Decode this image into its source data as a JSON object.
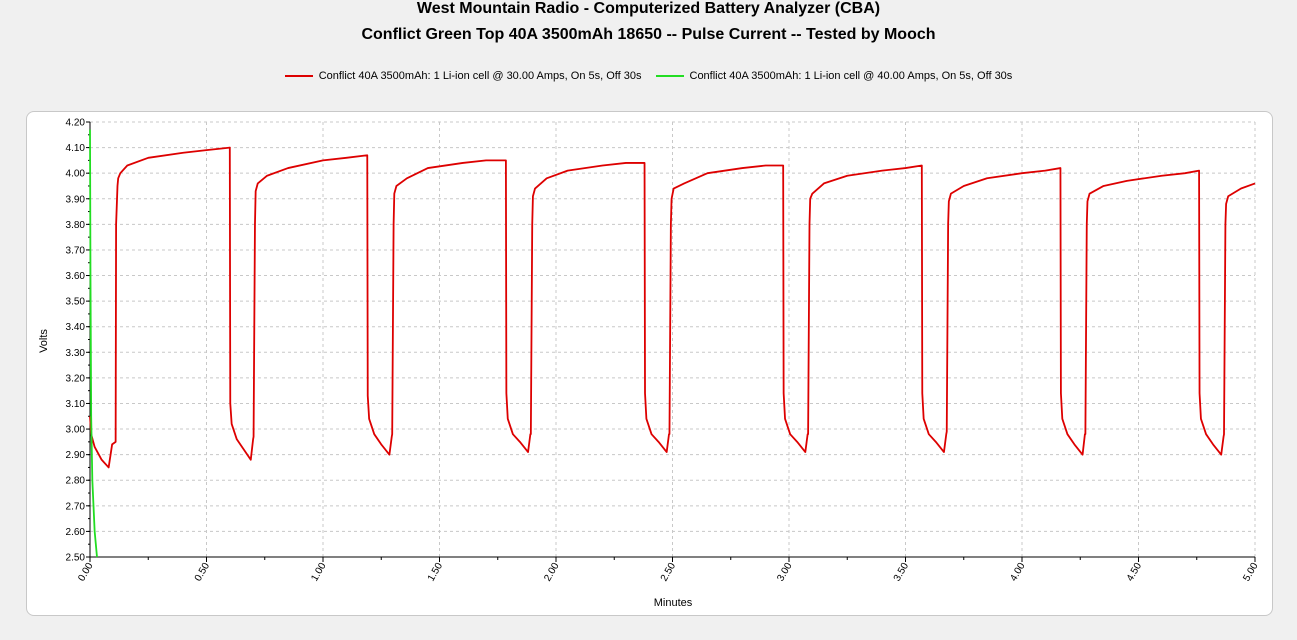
{
  "chart_data": {
    "type": "line",
    "title": "West Mountain Radio - Computerized Battery Analyzer (CBA)",
    "subtitle": "Conflict Green Top 40A 3500mAh 18650 -- Pulse Current -- Tested by Mooch",
    "xlabel": "Minutes",
    "ylabel": "Volts",
    "xlim": [
      0,
      5
    ],
    "ylim": [
      2.5,
      4.2
    ],
    "grid": true,
    "legend_position": "top",
    "x_ticks": [
      "0.00",
      "0.50",
      "1.00",
      "1.50",
      "2.00",
      "2.50",
      "3.00",
      "3.50",
      "4.00",
      "4.50",
      "5.00"
    ],
    "y_ticks": [
      "2.50",
      "2.60",
      "2.70",
      "2.80",
      "2.90",
      "3.00",
      "3.10",
      "3.20",
      "3.30",
      "3.40",
      "3.50",
      "3.60",
      "3.70",
      "3.80",
      "3.90",
      "4.00",
      "4.10",
      "4.20"
    ],
    "series": [
      {
        "name": "Conflict 40A 3500mAh: 1 Li-ion cell @ 30.00 Amps, On 5s, Off 30s",
        "color": "#dd0000",
        "x": [
          0.0,
          0.005,
          0.02,
          0.05,
          0.08,
          0.095,
          0.11,
          0.112,
          0.118,
          0.121,
          0.13,
          0.16,
          0.25,
          0.4,
          0.5,
          0.6,
          0.602,
          0.608,
          0.63,
          0.66,
          0.69,
          0.7,
          0.702,
          0.708,
          0.711,
          0.72,
          0.76,
          0.85,
          1.0,
          1.1,
          1.19,
          1.192,
          1.198,
          1.22,
          1.25,
          1.285,
          1.295,
          1.297,
          1.303,
          1.306,
          1.315,
          1.36,
          1.45,
          1.6,
          1.7,
          1.785,
          1.787,
          1.793,
          1.815,
          1.845,
          1.88,
          1.89,
          1.892,
          1.898,
          1.901,
          1.91,
          1.96,
          2.05,
          2.2,
          2.3,
          2.38,
          2.382,
          2.388,
          2.41,
          2.44,
          2.475,
          2.485,
          2.487,
          2.493,
          2.496,
          2.505,
          2.55,
          2.65,
          2.8,
          2.9,
          2.975,
          2.977,
          2.983,
          3.005,
          3.035,
          3.07,
          3.08,
          3.082,
          3.088,
          3.091,
          3.1,
          3.15,
          3.25,
          3.4,
          3.5,
          3.57,
          3.572,
          3.578,
          3.6,
          3.63,
          3.665,
          3.675,
          3.677,
          3.683,
          3.686,
          3.695,
          3.75,
          3.85,
          4.0,
          4.1,
          4.165,
          4.167,
          4.173,
          4.195,
          4.225,
          4.26,
          4.27,
          4.272,
          4.278,
          4.281,
          4.29,
          4.35,
          4.45,
          4.6,
          4.7,
          4.76,
          4.762,
          4.768,
          4.79,
          4.82,
          4.855,
          4.865,
          4.867,
          4.873,
          4.876,
          4.885,
          4.94,
          5.0
        ],
        "y": [
          3.05,
          2.98,
          2.93,
          2.88,
          2.85,
          2.94,
          2.95,
          3.8,
          3.95,
          3.98,
          4.0,
          4.03,
          4.06,
          4.08,
          4.09,
          4.1,
          3.1,
          3.02,
          2.96,
          2.92,
          2.88,
          2.96,
          2.97,
          3.8,
          3.93,
          3.96,
          3.99,
          4.02,
          4.05,
          4.06,
          4.07,
          3.13,
          3.04,
          2.98,
          2.94,
          2.9,
          2.97,
          2.98,
          3.8,
          3.92,
          3.95,
          3.98,
          4.02,
          4.04,
          4.05,
          4.05,
          3.14,
          3.04,
          2.98,
          2.95,
          2.91,
          2.98,
          2.98,
          3.8,
          3.91,
          3.94,
          3.98,
          4.01,
          4.03,
          4.04,
          4.04,
          3.14,
          3.04,
          2.98,
          2.95,
          2.91,
          2.98,
          2.98,
          3.8,
          3.9,
          3.94,
          3.96,
          4.0,
          4.02,
          4.03,
          4.03,
          3.14,
          3.04,
          2.98,
          2.95,
          2.91,
          2.98,
          2.98,
          3.8,
          3.9,
          3.92,
          3.96,
          3.99,
          4.01,
          4.02,
          4.03,
          3.14,
          3.04,
          2.98,
          2.95,
          2.91,
          2.98,
          2.99,
          3.8,
          3.89,
          3.92,
          3.95,
          3.98,
          4.0,
          4.01,
          4.02,
          3.14,
          3.04,
          2.98,
          2.94,
          2.9,
          2.98,
          2.98,
          3.8,
          3.89,
          3.92,
          3.95,
          3.97,
          3.99,
          4.0,
          4.01,
          3.14,
          3.04,
          2.98,
          2.94,
          2.9,
          2.97,
          2.98,
          3.8,
          3.88,
          3.91,
          3.94,
          3.96
        ]
      },
      {
        "name": "Conflict 40A 3500mAh: 1 Li-ion cell @ 40.00 Amps, On 5s, Off 30s",
        "color": "#22dd22",
        "x": [
          0.0,
          0.002,
          0.005,
          0.01,
          0.015,
          0.02,
          0.025,
          0.03
        ],
        "y": [
          4.17,
          3.6,
          3.05,
          2.8,
          2.7,
          2.6,
          2.55,
          2.5
        ]
      }
    ]
  }
}
